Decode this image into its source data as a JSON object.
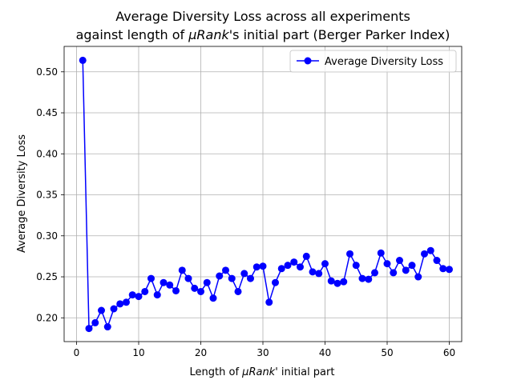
{
  "chart_data": {
    "type": "line",
    "title_line1": "Average Diversity Loss across all experiments",
    "title_line2_pre": "against length of ",
    "title_line2_math": "μRank",
    "title_line2_post": "'s initial part (Berger Parker Index)",
    "xlabel_pre": "Length of ",
    "xlabel_math": "μRank",
    "xlabel_post": "' initial part",
    "ylabel": "Average Diversity Loss",
    "xlim": [
      -2,
      62
    ],
    "ylim": [
      0.171,
      0.531
    ],
    "xticks": [
      0,
      10,
      20,
      30,
      40,
      50,
      60
    ],
    "yticks": [
      0.2,
      0.25,
      0.3,
      0.35,
      0.4,
      0.45,
      0.5
    ],
    "ytick_labels": [
      "0.20",
      "0.25",
      "0.30",
      "0.35",
      "0.40",
      "0.45",
      "0.50"
    ],
    "grid": true,
    "legend_position": "top-right",
    "series": [
      {
        "name": "Average Diversity Loss",
        "color": "#0000ff",
        "marker": "circle",
        "x": [
          1,
          2,
          3,
          4,
          5,
          6,
          7,
          8,
          9,
          10,
          11,
          12,
          13,
          14,
          15,
          16,
          17,
          18,
          19,
          20,
          21,
          22,
          23,
          24,
          25,
          26,
          27,
          28,
          29,
          30,
          31,
          32,
          33,
          34,
          35,
          36,
          37,
          38,
          39,
          40,
          41,
          42,
          43,
          44,
          45,
          46,
          47,
          48,
          49,
          50,
          51,
          52,
          53,
          54,
          55,
          56,
          57,
          58,
          59,
          60
        ],
        "y": [
          0.514,
          0.187,
          0.194,
          0.209,
          0.189,
          0.211,
          0.217,
          0.219,
          0.228,
          0.226,
          0.232,
          0.248,
          0.228,
          0.243,
          0.24,
          0.233,
          0.258,
          0.248,
          0.236,
          0.232,
          0.243,
          0.224,
          0.251,
          0.258,
          0.248,
          0.232,
          0.254,
          0.248,
          0.262,
          0.263,
          0.219,
          0.243,
          0.26,
          0.264,
          0.268,
          0.262,
          0.275,
          0.256,
          0.254,
          0.266,
          0.245,
          0.242,
          0.244,
          0.278,
          0.264,
          0.248,
          0.247,
          0.255,
          0.279,
          0.266,
          0.255,
          0.27,
          0.258,
          0.264,
          0.25,
          0.278,
          0.282,
          0.27,
          0.26,
          0.259
        ]
      }
    ]
  }
}
